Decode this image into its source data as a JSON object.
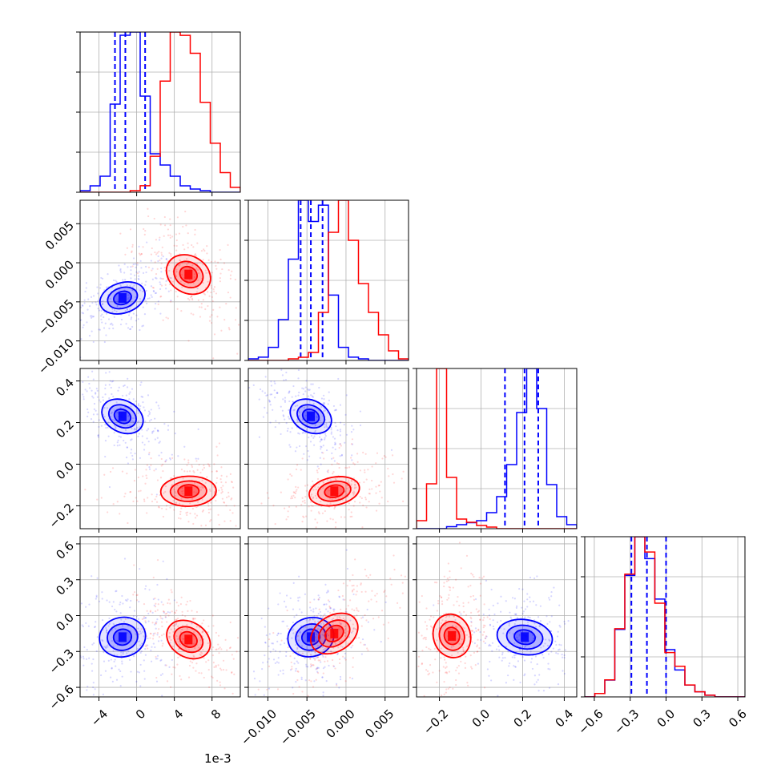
{
  "colors": {
    "series_a": "#0000ff",
    "series_b": "#ff0000",
    "grid": "#b0b0b0",
    "axes": "#000000"
  },
  "chart_data": {
    "type": "corner",
    "grid": true,
    "x_offset_text": "1e-3",
    "params": [
      {
        "range": [
          -6,
          11
        ],
        "ticks": [
          -4,
          0,
          4,
          8
        ],
        "tick_labels": [
          "−4",
          "0",
          "4",
          "8"
        ]
      },
      {
        "range": [
          -0.0125,
          0.008
        ],
        "ticks": [
          -0.01,
          -0.005,
          0.0,
          0.005
        ],
        "tick_labels": [
          "−0.010",
          "−0.005",
          "0.000",
          "0.005"
        ]
      },
      {
        "range": [
          -0.31,
          0.46
        ],
        "ticks": [
          -0.2,
          0.0,
          0.2,
          0.4
        ],
        "tick_labels": [
          "−0.2",
          "0.0",
          "0.2",
          "0.4"
        ]
      },
      {
        "range": [
          -0.68,
          0.66
        ],
        "ticks": [
          -0.6,
          -0.3,
          0.0,
          0.3,
          0.6
        ],
        "tick_labels": [
          "−0.6",
          "−0.3",
          "0.0",
          "0.3",
          "0.6"
        ]
      }
    ],
    "series": [
      {
        "color_key": "series_a",
        "histograms": [
          [
            1,
            4,
            10,
            55,
            98,
            100,
            60,
            24,
            17,
            10,
            4,
            2,
            1,
            0,
            0,
            0
          ],
          [
            1,
            2,
            8,
            25,
            62,
            98,
            85,
            95,
            40,
            8,
            2,
            1,
            0,
            0,
            0,
            0
          ],
          [
            0,
            0,
            0,
            1,
            2,
            3,
            4,
            8,
            16,
            32,
            58,
            80,
            60,
            22,
            6,
            2
          ],
          [
            0,
            2,
            10,
            40,
            72,
            95,
            82,
            58,
            28,
            16,
            7,
            3,
            1,
            0,
            0,
            0
          ]
        ],
        "quantiles": [
          [
            -2.3,
            -1.2,
            0.9
          ],
          [
            -0.0058,
            -0.0045,
            -0.003
          ],
          [
            0.115,
            0.209,
            0.275
          ],
          [
            -0.29,
            -0.16,
            0.0
          ]
        ],
        "centers": [
          [
            0,
            1,
            -1.5,
            -0.0045
          ],
          [
            0,
            2,
            -1.5,
            0.23
          ],
          [
            0,
            3,
            -1.5,
            -0.18
          ],
          [
            1,
            2,
            -0.0045,
            0.23
          ],
          [
            1,
            3,
            -0.0045,
            -0.18
          ],
          [
            2,
            3,
            0.21,
            -0.18
          ]
        ]
      },
      {
        "color_key": "series_b",
        "histograms": [
          [
            0,
            0,
            0,
            0,
            0,
            1,
            4,
            22,
            68,
            98,
            96,
            85,
            55,
            30,
            12,
            3
          ],
          [
            0,
            0,
            0,
            0,
            1,
            2,
            5,
            30,
            80,
            100,
            75,
            48,
            30,
            16,
            6,
            1
          ],
          [
            5,
            28,
            100,
            32,
            6,
            4,
            2,
            1,
            0,
            0,
            0,
            0,
            0,
            0,
            0,
            0
          ],
          [
            0,
            2,
            10,
            40,
            72,
            94,
            85,
            55,
            26,
            18,
            7,
            3,
            1,
            0,
            0,
            0
          ]
        ],
        "quantiles": [],
        "centers": [
          [
            0,
            1,
            5.5,
            -0.0015
          ],
          [
            0,
            2,
            5.5,
            -0.13
          ],
          [
            0,
            3,
            5.5,
            -0.2
          ],
          [
            1,
            2,
            -0.0015,
            -0.13
          ],
          [
            1,
            3,
            -0.0015,
            -0.15
          ],
          [
            2,
            3,
            -0.14,
            -0.17
          ]
        ]
      }
    ]
  }
}
